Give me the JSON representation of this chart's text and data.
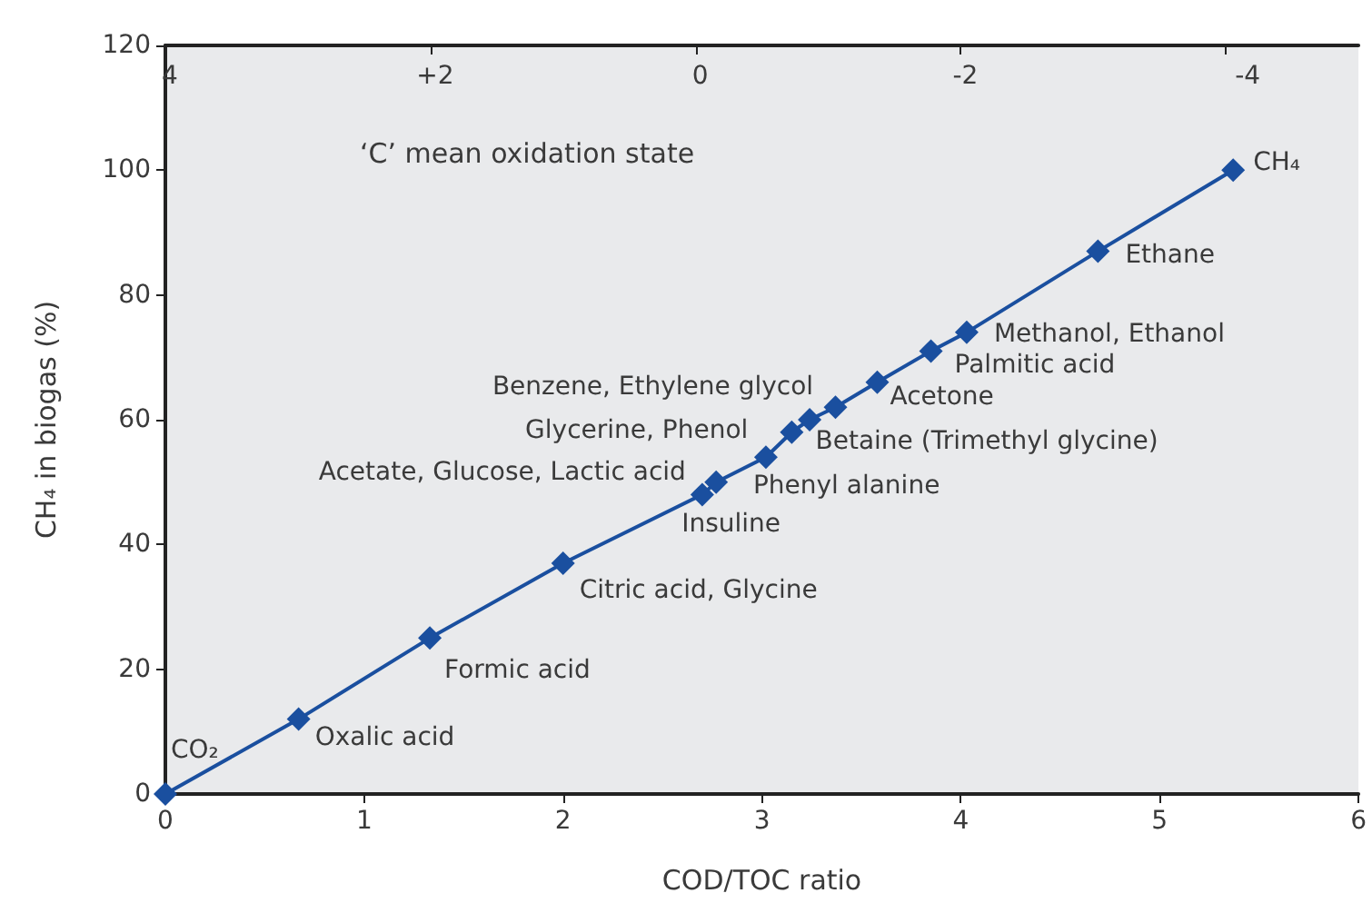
{
  "chart_data": {
    "type": "line",
    "xlabel": "COD/TOC ratio",
    "ylabel": "CH₄ in biogas (%)",
    "x2label": "‘C’ mean oxidation state",
    "x": [
      0,
      0.67,
      1.33,
      2.0,
      2.7,
      2.77,
      3.02,
      3.15,
      3.24,
      3.37,
      3.58,
      3.85,
      4.03,
      4.69,
      5.37
    ],
    "series": [
      {
        "color": "#1a4f9f",
        "values": [
          0,
          12,
          25,
          37,
          48,
          50,
          54,
          58,
          60,
          62,
          66,
          71,
          74,
          87,
          100
        ]
      }
    ],
    "xlim": [
      0,
      6
    ],
    "xticks": [
      0,
      1,
      2,
      3,
      4,
      5,
      6
    ],
    "ylim": [
      0,
      120
    ],
    "yticks": [
      0,
      20,
      40,
      60,
      80,
      100,
      120
    ],
    "x2lim": [
      4,
      -5
    ],
    "x2ticks": [
      4,
      {
        "value": 2,
        "label": "+2"
      },
      0,
      -2,
      -4
    ],
    "marker": "diamond",
    "line_style": "solid",
    "grid": false,
    "annotations": [
      {
        "text": "CO₂",
        "x": 0,
        "y": 0
      },
      {
        "text": "Oxalic acid",
        "x": 0.67,
        "y": 12
      },
      {
        "text": "Formic acid",
        "x": 1.33,
        "y": 25
      },
      {
        "text": "Citric acid, Glycine",
        "x": 2.0,
        "y": 37
      },
      {
        "text": "Acetate, Glucose, Lactic acid",
        "x": 2.7,
        "y": 48
      },
      {
        "text": "Insuline",
        "x": 2.77,
        "y": 50
      },
      {
        "text": "Phenyl alanine",
        "x": 3.02,
        "y": 54
      },
      {
        "text": "Glycerine, Phenol",
        "x": 3.15,
        "y": 58
      },
      {
        "text": "Benzene, Ethylene glycol",
        "x": 3.24,
        "y": 60
      },
      {
        "text": "Betaine (Trimethyl glycine)",
        "x": 3.37,
        "y": 62
      },
      {
        "text": "Acetone",
        "x": 3.58,
        "y": 66
      },
      {
        "text": "Palmitic acid",
        "x": 3.85,
        "y": 71
      },
      {
        "text": "Methanol, Ethanol",
        "x": 4.03,
        "y": 74
      },
      {
        "text": "Ethane",
        "x": 4.69,
        "y": 87
      },
      {
        "text": "CH₄",
        "x": 5.37,
        "y": 100
      }
    ]
  }
}
